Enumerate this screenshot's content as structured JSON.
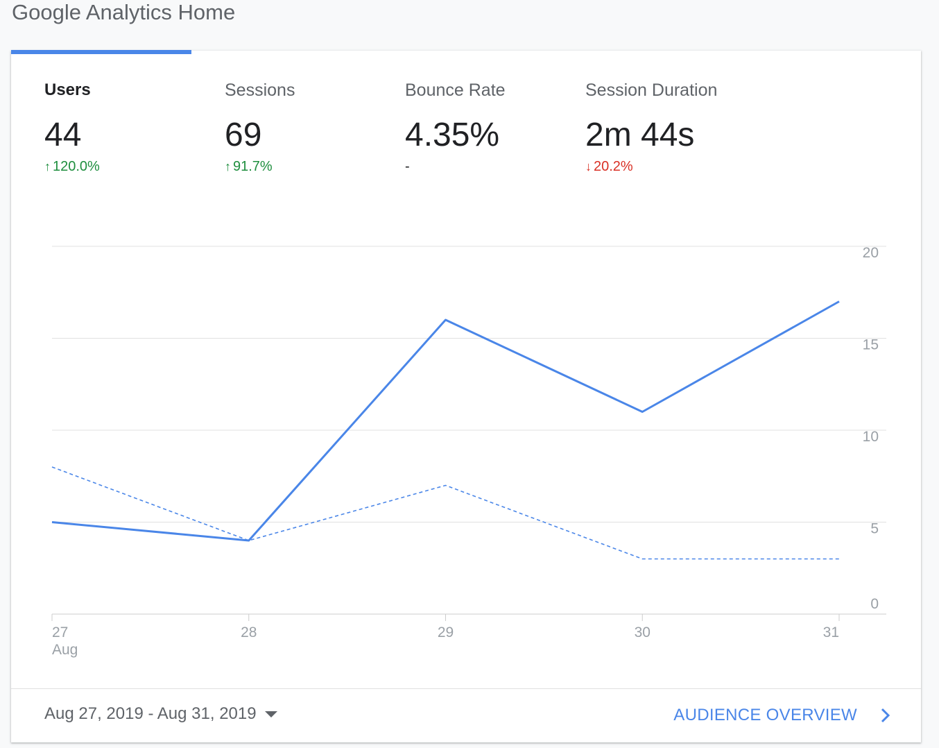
{
  "page": {
    "title": "Google Analytics Home"
  },
  "metrics": [
    {
      "label": "Users",
      "value": "44",
      "delta": "120.0%",
      "direction": "up",
      "active": true
    },
    {
      "label": "Sessions",
      "value": "69",
      "delta": "91.7%",
      "direction": "up",
      "active": false
    },
    {
      "label": "Bounce Rate",
      "value": "4.35%",
      "delta": "-",
      "direction": "none",
      "active": false
    },
    {
      "label": "Session Duration",
      "value": "2m 44s",
      "delta": "20.2%",
      "direction": "down",
      "active": false
    }
  ],
  "chart_data": {
    "type": "line",
    "x": [
      "27",
      "28",
      "29",
      "30",
      "31"
    ],
    "x_sublabel": "Aug",
    "series": [
      {
        "values": [
          5,
          4,
          16,
          11,
          17
        ],
        "style": "solid",
        "color": "#4a86e8"
      },
      {
        "values": [
          8,
          4,
          7,
          3,
          3
        ],
        "style": "dashed",
        "color": "#4a86e8"
      }
    ],
    "yticks": [
      "0",
      "5",
      "10",
      "15",
      "20"
    ],
    "ylim": [
      0,
      20
    ],
    "y_axis_side": "right",
    "grid": true
  },
  "footer": {
    "date_range": "Aug 27, 2019 - Aug 31, 2019",
    "audience_link": "AUDIENCE OVERVIEW"
  },
  "colors": {
    "accent": "#4a86e8",
    "up": "#1e8e3e",
    "down": "#d93025"
  }
}
